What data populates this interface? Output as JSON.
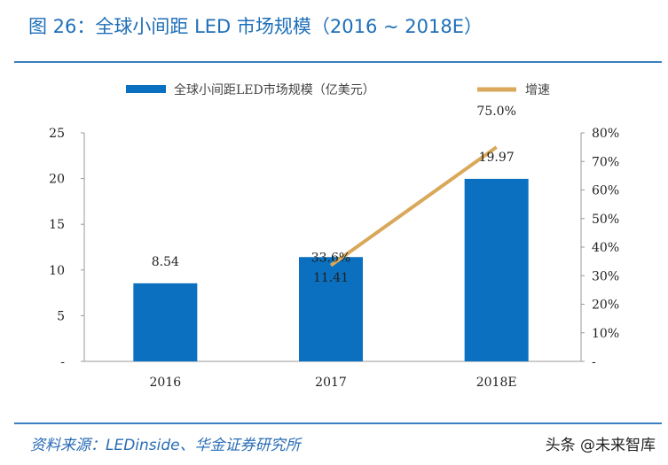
{
  "header": {
    "title": "图 26：全球小间距 LED 市场规模（2016 ~ 2018E）"
  },
  "footer": {
    "source": "资料来源：LEDinside、华金证券研究所",
    "watermark": "头条 @未来智库"
  },
  "chart_data": {
    "type": "bar+line",
    "categories": [
      "2016",
      "2017",
      "2018E"
    ],
    "series": [
      {
        "name": "全球小间距LED市场规模（亿美元）",
        "type": "bar",
        "axis": "left",
        "color": "#0a70bf",
        "values": [
          8.54,
          11.41,
          19.97
        ],
        "labels": [
          "8.54",
          "11.41",
          "19.97"
        ]
      },
      {
        "name": "增速",
        "type": "line",
        "axis": "right",
        "color": "#d9a85a",
        "values": [
          null,
          33.6,
          75.0
        ],
        "labels": [
          "",
          "33.6%",
          "75.0%"
        ]
      }
    ],
    "left_axis": {
      "ylim": [
        0,
        25
      ],
      "ticks": [
        "-",
        "5",
        "10",
        "15",
        "20",
        "25"
      ]
    },
    "right_axis": {
      "ylim": [
        0,
        80
      ],
      "ticks": [
        "-",
        "10%",
        "20%",
        "30%",
        "40%",
        "50%",
        "60%",
        "70%",
        "80%"
      ]
    },
    "legend": "top",
    "grid": false
  }
}
